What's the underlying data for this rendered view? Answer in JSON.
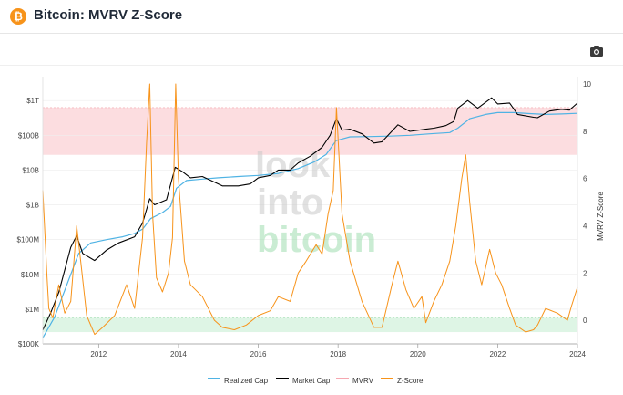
{
  "header": {
    "title": "Bitcoin: MVRV Z-Score",
    "logo_glyph": "₿"
  },
  "toolbar": {
    "camera_icon": "camera-icon"
  },
  "watermark": {
    "line1": "look",
    "line2": "into",
    "line3": "bitcoin"
  },
  "colors": {
    "realized_cap": "#4fb3e4",
    "market_cap": "#000000",
    "mvrv": "#f6a7b0",
    "zscore": "#f7931a",
    "upper_band": "#fbd5d8",
    "lower_band": "#d6f2df"
  },
  "legend": [
    {
      "label": "Realized Cap",
      "color": "#4fb3e4",
      "key": "realized"
    },
    {
      "label": "Market Cap",
      "color": "#000000",
      "key": "market"
    },
    {
      "label": "MVRV",
      "color": "#f6a7b0",
      "key": "mvrv"
    },
    {
      "label": "Z-Score",
      "color": "#f7931a",
      "key": "zscore"
    }
  ],
  "chart_data": {
    "type": "line",
    "title": "Bitcoin: MVRV Z-Score",
    "x_ticks": [
      "2012",
      "2014",
      "2016",
      "2018",
      "2020",
      "2022",
      "2024"
    ],
    "xlim": [
      2010.6,
      2024.0
    ],
    "y_left_ticks": [
      "$100K",
      "$1M",
      "$10M",
      "$100M",
      "$1B",
      "$10B",
      "$100B",
      "$1T"
    ],
    "y_left_scale": "log",
    "y_left_range": [
      100000,
      3000000000000
    ],
    "y_right_label": "MVRV Z-Score",
    "y_right_ticks": [
      "0",
      "2",
      "4",
      "6",
      "8",
      "10"
    ],
    "y_right_range": [
      -1,
      10
    ],
    "bands": [
      {
        "axis": "right",
        "from": 7.0,
        "to": 9.0,
        "zone": "upper"
      },
      {
        "axis": "right",
        "from": -0.5,
        "to": 0.1,
        "zone": "lower"
      }
    ],
    "series": [
      {
        "name": "Realized Cap",
        "axis": "left",
        "x": [
          2010.6,
          2010.9,
          2011.3,
          2011.5,
          2011.8,
          2012.2,
          2012.6,
          2012.9,
          2013.1,
          2013.3,
          2013.6,
          2013.8,
          2013.95,
          2014.2,
          2014.6,
          2015.0,
          2015.5,
          2016.0,
          2016.5,
          2017.0,
          2017.4,
          2017.7,
          2017.95,
          2018.3,
          2018.8,
          2019.3,
          2019.8,
          2020.3,
          2020.8,
          2021.0,
          2021.3,
          2021.7,
          2022.0,
          2022.4,
          2022.8,
          2023.2,
          2023.6,
          2024.0
        ],
        "values": [
          150000,
          600000,
          10000000,
          40000000,
          80000000,
          100000000,
          120000000,
          150000000,
          200000000,
          400000000,
          600000000,
          900000000,
          3000000000,
          5000000000,
          5500000000,
          6000000000,
          6500000000,
          7000000000,
          8000000000,
          11000000000,
          17000000000,
          28000000000,
          70000000000,
          90000000000,
          92000000000,
          95000000000,
          100000000000,
          110000000000,
          120000000000,
          160000000000,
          300000000000,
          400000000000,
          450000000000,
          450000000000,
          420000000000,
          400000000000,
          410000000000,
          430000000000
        ]
      },
      {
        "name": "Market Cap",
        "axis": "left",
        "x": [
          2010.6,
          2010.8,
          2011.0,
          2011.3,
          2011.45,
          2011.6,
          2011.9,
          2012.2,
          2012.5,
          2012.9,
          2013.1,
          2013.28,
          2013.4,
          2013.7,
          2013.92,
          2014.1,
          2014.3,
          2014.6,
          2014.9,
          2015.1,
          2015.5,
          2015.8,
          2016.0,
          2016.3,
          2016.5,
          2016.8,
          2017.0,
          2017.3,
          2017.6,
          2017.8,
          2017.96,
          2018.1,
          2018.3,
          2018.6,
          2018.9,
          2019.1,
          2019.5,
          2019.8,
          2020.2,
          2020.4,
          2020.7,
          2020.9,
          2021.0,
          2021.25,
          2021.5,
          2021.85,
          2022.0,
          2022.3,
          2022.5,
          2022.9,
          2023.0,
          2023.3,
          2023.6,
          2023.8,
          2024.0
        ],
        "values": [
          250000,
          800000,
          3000000,
          60000000,
          130000000,
          40000000,
          25000000,
          50000000,
          80000000,
          120000000,
          300000000,
          1500000000,
          1000000000,
          1400000000,
          12000000000,
          9000000000,
          6000000000,
          6500000000,
          4500000000,
          3500000000,
          3500000000,
          4000000000,
          6000000000,
          7000000000,
          10000000000,
          10000000000,
          16000000000,
          25000000000,
          45000000000,
          100000000000,
          300000000000,
          140000000000,
          150000000000,
          110000000000,
          60000000000,
          65000000000,
          200000000000,
          130000000000,
          150000000000,
          160000000000,
          190000000000,
          250000000000,
          600000000000,
          1000000000000,
          600000000000,
          1200000000000,
          800000000000,
          850000000000,
          400000000000,
          330000000000,
          320000000000,
          500000000000,
          560000000000,
          530000000000,
          850000000000
        ]
      },
      {
        "name": "Z-Score",
        "axis": "right",
        "x": [
          2010.6,
          2010.7,
          2010.75,
          2010.85,
          2011.0,
          2011.15,
          2011.3,
          2011.45,
          2011.55,
          2011.7,
          2011.9,
          2012.1,
          2012.4,
          2012.7,
          2012.9,
          2013.1,
          2013.2,
          2013.28,
          2013.35,
          2013.45,
          2013.6,
          2013.75,
          2013.85,
          2013.93,
          2014.0,
          2014.15,
          2014.3,
          2014.6,
          2014.9,
          2015.1,
          2015.4,
          2015.7,
          2016.0,
          2016.3,
          2016.5,
          2016.8,
          2017.0,
          2017.2,
          2017.45,
          2017.6,
          2017.75,
          2017.88,
          2017.96,
          2018.1,
          2018.3,
          2018.6,
          2018.9,
          2019.1,
          2019.35,
          2019.5,
          2019.7,
          2019.9,
          2020.1,
          2020.2,
          2020.4,
          2020.6,
          2020.8,
          2020.95,
          2021.1,
          2021.2,
          2021.3,
          2021.45,
          2021.6,
          2021.8,
          2021.95,
          2022.1,
          2022.3,
          2022.45,
          2022.7,
          2022.9,
          2023.0,
          2023.2,
          2023.5,
          2023.75,
          2023.85,
          2024.0
        ],
        "values": [
          5.5,
          2.0,
          0.5,
          0.1,
          1.5,
          0.3,
          0.8,
          4.0,
          2.5,
          0.2,
          -0.6,
          -0.3,
          0.2,
          1.5,
          0.5,
          3.5,
          7.5,
          10.0,
          4.5,
          1.8,
          1.2,
          2.0,
          3.5,
          10.0,
          6.0,
          2.5,
          1.5,
          1.0,
          0.0,
          -0.3,
          -0.4,
          -0.2,
          0.2,
          0.4,
          1.0,
          0.8,
          2.0,
          2.5,
          3.2,
          2.8,
          4.5,
          5.5,
          9.0,
          4.5,
          2.5,
          0.8,
          -0.3,
          -0.3,
          1.5,
          2.5,
          1.3,
          0.5,
          1.0,
          -0.1,
          0.8,
          1.5,
          2.5,
          4.0,
          6.0,
          7.0,
          5.0,
          2.5,
          1.5,
          3.0,
          2.0,
          1.5,
          0.5,
          -0.2,
          -0.5,
          -0.4,
          -0.2,
          0.5,
          0.3,
          0.0,
          0.6,
          1.4
        ]
      }
    ]
  }
}
